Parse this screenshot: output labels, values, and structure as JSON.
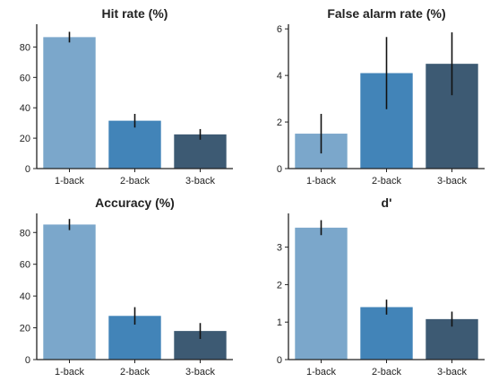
{
  "colors": {
    "1-back": "#7BA7CB",
    "2-back": "#4284B8",
    "3-back": "#3D5A73",
    "axis": "#222222",
    "errorbar": "#111111"
  },
  "chart_data": [
    {
      "type": "bar",
      "title": "Hit rate (%)",
      "categories": [
        "1-back",
        "2-back",
        "3-back"
      ],
      "values": [
        86.5,
        31.5,
        22.5
      ],
      "errors": [
        3.5,
        4.5,
        3.5
      ],
      "ylim": [
        0,
        95
      ],
      "yticks": [
        0,
        20,
        40,
        60,
        80
      ],
      "ytick_labels": [
        "0",
        "20",
        "40",
        "60",
        "80"
      ],
      "xlabel": "",
      "ylabel": "",
      "grid": false
    },
    {
      "type": "bar",
      "title": "False alarm rate (%)",
      "categories": [
        "1-back",
        "2-back",
        "3-back"
      ],
      "values": [
        1.5,
        4.1,
        4.5
      ],
      "errors": [
        0.85,
        1.55,
        1.35
      ],
      "ylim": [
        0,
        6.2
      ],
      "yticks": [
        0,
        2,
        4,
        6
      ],
      "ytick_labels": [
        "0",
        "2",
        "4",
        "6"
      ],
      "xlabel": "",
      "ylabel": "",
      "grid": false
    },
    {
      "type": "bar",
      "title": "Accuracy (%)",
      "categories": [
        "1-back",
        "2-back",
        "3-back"
      ],
      "values": [
        85,
        27.5,
        18
      ],
      "errors": [
        3.5,
        5.5,
        5
      ],
      "ylim": [
        0,
        92
      ],
      "yticks": [
        0,
        20,
        40,
        60,
        80
      ],
      "ytick_labels": [
        "0",
        "20",
        "40",
        "60",
        "80"
      ],
      "xlabel": "",
      "ylabel": "",
      "grid": false
    },
    {
      "type": "bar",
      "title": "d'",
      "categories": [
        "1-back",
        "2-back",
        "3-back"
      ],
      "values": [
        3.52,
        1.4,
        1.08
      ],
      "errors": [
        0.2,
        0.2,
        0.2
      ],
      "ylim": [
        0,
        3.9
      ],
      "yticks": [
        0,
        1,
        2,
        3
      ],
      "ytick_labels": [
        "0",
        "1",
        "2",
        "3"
      ],
      "xlabel": "",
      "ylabel": "",
      "grid": false
    }
  ]
}
